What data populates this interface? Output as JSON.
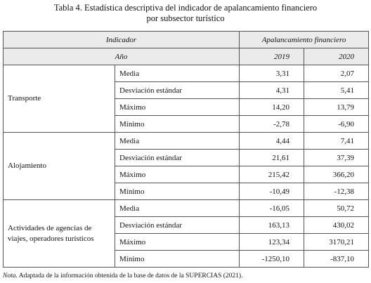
{
  "title": [
    "Tabla 4. Estadística descriptiva del indicador de apalancamiento financiero",
    "por subsector turístico"
  ],
  "table": {
    "header": {
      "indicator": "Indicador",
      "measure": "Apalancamiento financiero",
      "year": "Año",
      "years": [
        "2019",
        "2020"
      ]
    },
    "groups": [
      {
        "name": "Transporte",
        "rows": [
          [
            "Media",
            "3,31",
            "2,07"
          ],
          [
            "Desviación estándar",
            "4,31",
            "5,41"
          ],
          [
            "Máximo",
            "14,20",
            "13,79"
          ],
          [
            "Mínimo",
            "-2,78",
            "-6,90"
          ]
        ]
      },
      {
        "name": "Alojamiento",
        "rows": [
          [
            "Media",
            "4,44",
            "7,41"
          ],
          [
            "Desviación estándar",
            "21,61",
            "37,39"
          ],
          [
            "Máximo",
            "215,42",
            "366,20"
          ],
          [
            "Mínimo",
            "-10,49",
            "-12,38"
          ]
        ]
      },
      {
        "name": "Actividades de agencias de viajes, operadores turísticos",
        "rows": [
          [
            "Media",
            "-16,05",
            "50,72"
          ],
          [
            "Desviación estándar",
            "163,13",
            "430,02"
          ],
          [
            "Máximo",
            "123,34",
            "3170,21"
          ],
          [
            "Mínimo",
            "-1250,10",
            "-837,10"
          ]
        ]
      }
    ]
  },
  "note": {
    "label": "Nota.",
    "text": "Adaptada de la información obtenida de la base de datos de la",
    "source": "SUPERCIAS",
    "year": "(2021)."
  }
}
